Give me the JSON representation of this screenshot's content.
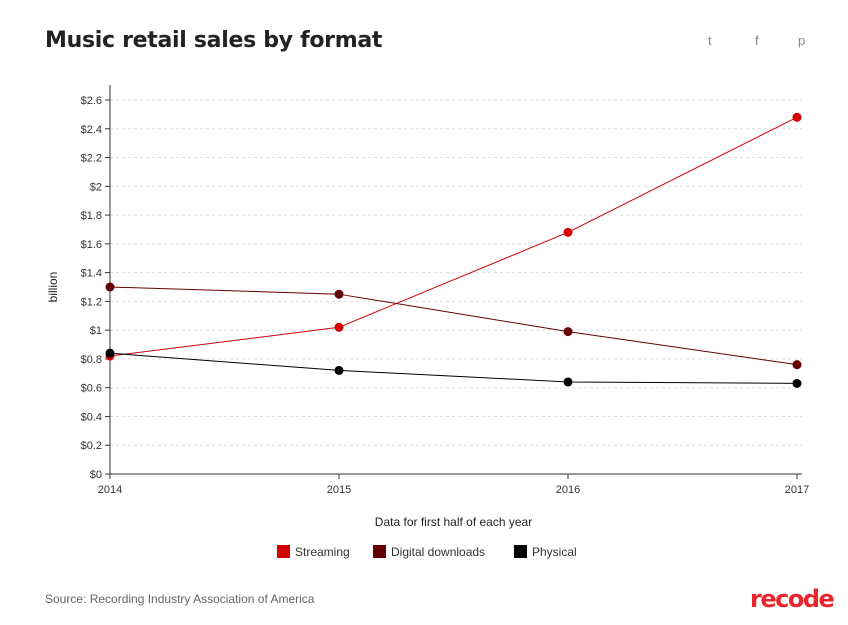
{
  "header": {
    "title": "Music retail sales by format",
    "share": [
      {
        "icon": "twitter-icon",
        "glyph": "t"
      },
      {
        "icon": "facebook-icon",
        "glyph": "f"
      },
      {
        "icon": "pinterest-icon",
        "glyph": "p"
      }
    ]
  },
  "footer": {
    "source": "Source: Recording Industry Association of America",
    "logo": "recode"
  },
  "chart_data": {
    "type": "line",
    "title": "Music retail sales by format",
    "xlabel": "Data for first half of each year",
    "ylabel": "billion",
    "x": [
      "2014",
      "2015",
      "2016",
      "2017"
    ],
    "ylim": [
      0,
      2.6
    ],
    "yticks": [
      0,
      0.2,
      0.4,
      0.6,
      0.8,
      1,
      1.2,
      1.4,
      1.6,
      1.8,
      2,
      2.2,
      2.4,
      2.6
    ],
    "ytick_labels": [
      "$0",
      "$0.2",
      "$0.4",
      "$0.6",
      "$0.8",
      "$1",
      "$1.2",
      "$1.4",
      "$1.6",
      "$1.8",
      "$2",
      "$2.2",
      "$2.4",
      "$2.6"
    ],
    "grid": "horizontal dashed",
    "legend_placement": "bottom",
    "series": [
      {
        "name": "Streaming",
        "color": "#d40000",
        "values": [
          0.82,
          1.02,
          1.68,
          2.48
        ]
      },
      {
        "name": "Digital downloads",
        "color": "#660000",
        "values": [
          1.3,
          1.25,
          0.99,
          0.76
        ]
      },
      {
        "name": "Physical",
        "color": "#000000",
        "values": [
          0.84,
          0.72,
          0.64,
          0.63
        ]
      }
    ]
  }
}
